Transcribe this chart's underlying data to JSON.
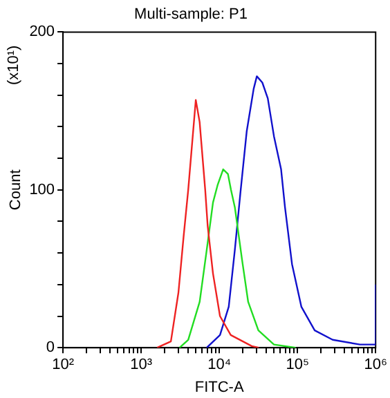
{
  "chart_data": {
    "type": "line",
    "title": "Multi-sample: P1",
    "xlabel": "FITC-A",
    "ylabel": "Count",
    "annotations": [
      "(x10¹)"
    ],
    "log": "x",
    "xlim": [
      100,
      1000000
    ],
    "xticks": [
      {
        "value": 100,
        "label": "10²"
      },
      {
        "value": 200,
        "label": null
      },
      {
        "value": 300,
        "label": null
      },
      {
        "value": 400,
        "label": null
      },
      {
        "value": 500,
        "label": null
      },
      {
        "value": 600,
        "label": null
      },
      {
        "value": 700,
        "label": null
      },
      {
        "value": 800,
        "label": null
      },
      {
        "value": 900,
        "label": null
      },
      {
        "value": 1000,
        "label": "10³"
      },
      {
        "value": 2000,
        "label": null
      },
      {
        "value": 3000,
        "label": null
      },
      {
        "value": 4000,
        "label": null
      },
      {
        "value": 5000,
        "label": null
      },
      {
        "value": 6000,
        "label": null
      },
      {
        "value": 7000,
        "label": null
      },
      {
        "value": 8000,
        "label": null
      },
      {
        "value": 9000,
        "label": null
      },
      {
        "value": 10000,
        "label": "10⁴"
      },
      {
        "value": 20000,
        "label": null
      },
      {
        "value": 30000,
        "label": null
      },
      {
        "value": 40000,
        "label": null
      },
      {
        "value": 50000,
        "label": null
      },
      {
        "value": 60000,
        "label": null
      },
      {
        "value": 70000,
        "label": null
      },
      {
        "value": 80000,
        "label": null
      },
      {
        "value": 90000,
        "label": null
      },
      {
        "value": 100000,
        "label": "10⁵"
      },
      {
        "value": 200000,
        "label": null
      },
      {
        "value": 300000,
        "label": null
      },
      {
        "value": 400000,
        "label": null
      },
      {
        "value": 500000,
        "label": null
      },
      {
        "value": 600000,
        "label": null
      },
      {
        "value": 700000,
        "label": null
      },
      {
        "value": 800000,
        "label": null
      },
      {
        "value": 900000,
        "label": null
      },
      {
        "value": 1000000,
        "label": "10⁶"
      }
    ],
    "ylim": [
      0,
      200
    ],
    "yticks": [
      0,
      {
        "value": 20,
        "label": null
      },
      {
        "value": 40,
        "label": null
      },
      {
        "value": 60,
        "label": null
      },
      {
        "value": 80,
        "label": null
      },
      100,
      {
        "value": 120,
        "label": null
      },
      {
        "value": 140,
        "label": null
      },
      {
        "value": 160,
        "label": null
      },
      {
        "value": 180,
        "label": null
      },
      200
    ],
    "grid": false,
    "legend": false,
    "marker": "none",
    "line_style": "solid",
    "series": [
      {
        "color": "#ee2222",
        "x": [
          1600,
          2400,
          3000,
          3500,
          4000,
          5000,
          5600,
          6600,
          7100,
          8300,
          10200,
          14000,
          26000,
          32000
        ],
        "values": [
          0,
          4,
          35,
          71,
          100,
          157,
          143,
          100,
          77,
          47,
          20,
          8,
          1,
          0
        ]
      },
      {
        "color": "#22dd22",
        "x": [
          3100,
          4000,
          5600,
          6900,
          8300,
          9500,
          11200,
          12900,
          14100,
          15800,
          19500,
          23400,
          31600,
          50000,
          95000
        ],
        "values": [
          0,
          5,
          29,
          62,
          92,
          103,
          113,
          110,
          100,
          89,
          56,
          29,
          11,
          2,
          0
        ]
      },
      {
        "color": "#1111cc",
        "x": [
          6900,
          10200,
          13200,
          15800,
          18600,
          22400,
          27500,
          30200,
          35500,
          41700,
          50000,
          61700,
          69200,
          85100,
          112000,
          166000,
          282000,
          631000,
          933000,
          990000,
          1000000
        ],
        "values": [
          0,
          8,
          26,
          62,
          98,
          137,
          164,
          172,
          168,
          158,
          134,
          113,
          89,
          53,
          26,
          11,
          5,
          2,
          2,
          2,
          40
        ]
      }
    ]
  }
}
